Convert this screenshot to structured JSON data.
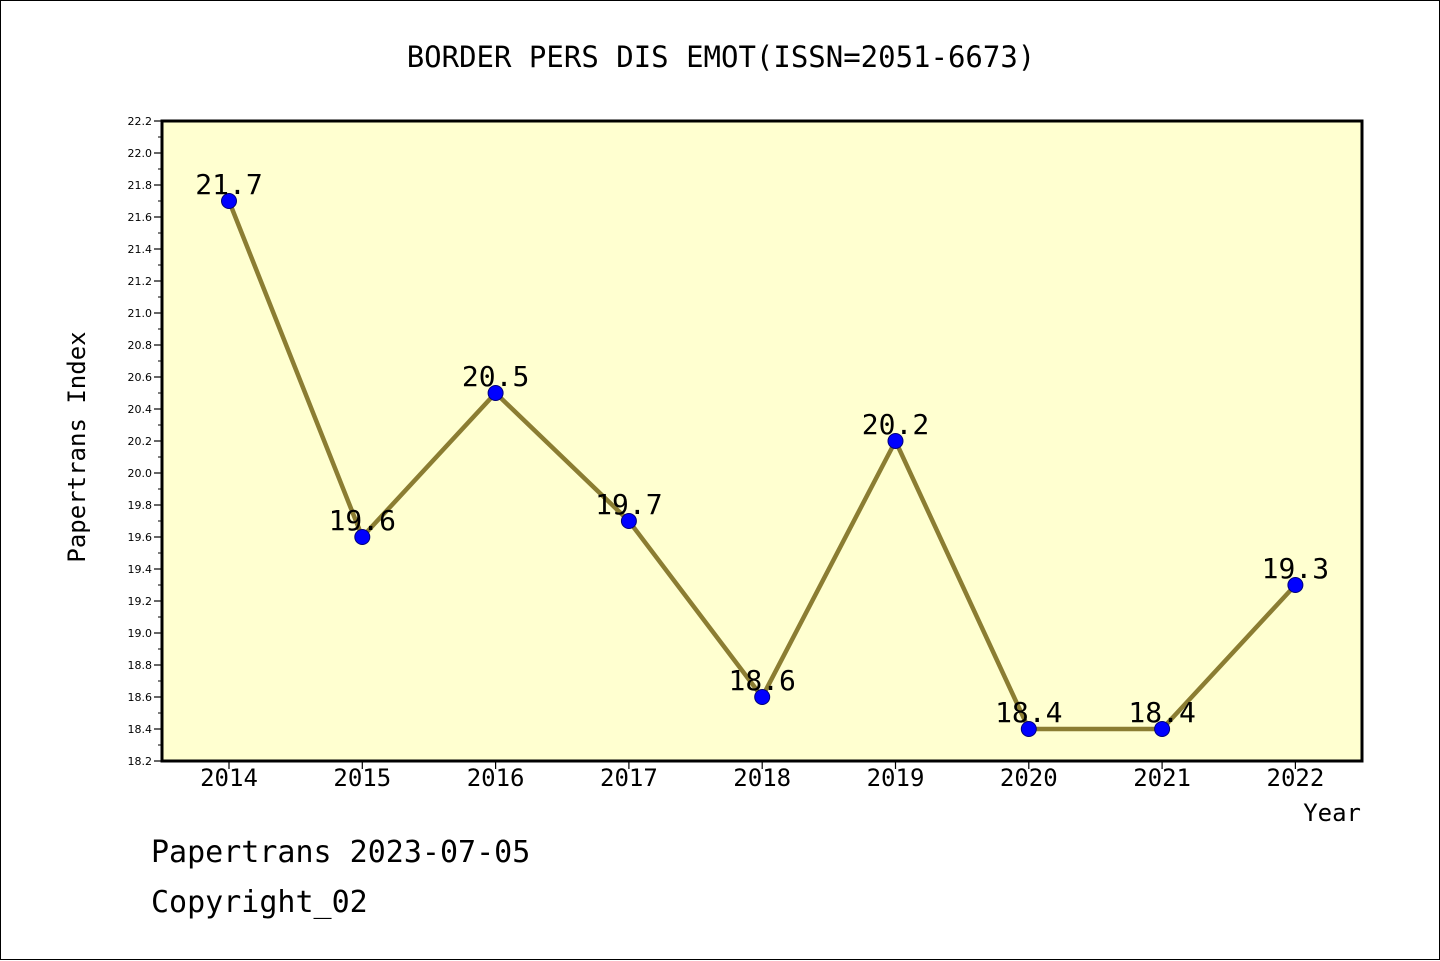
{
  "footer": {
    "stamp": "Papertrans 2023-07-05",
    "copyright": "Copyright_02"
  },
  "chart_data": {
    "type": "line",
    "title": "BORDER PERS DIS EMOT(ISSN=2051-6673)",
    "xlabel": "Year",
    "ylabel": "Papertrans Index",
    "categories": [
      "2014",
      "2015",
      "2016",
      "2017",
      "2018",
      "2019",
      "2020",
      "2021",
      "2022"
    ],
    "values": [
      21.7,
      19.6,
      20.5,
      19.7,
      18.6,
      20.2,
      18.4,
      18.4,
      19.3
    ],
    "data_labels": [
      "21.7",
      "19.6",
      "20.5",
      "19.7",
      "18.6",
      "20.2",
      "18.4",
      "18.4",
      "19.3"
    ],
    "ylim": [
      18.2,
      22.2
    ],
    "yticks": [
      "18.2",
      "18.4",
      "18.6",
      "18.8",
      "19.0",
      "19.2",
      "19.4",
      "19.6",
      "19.8",
      "20.0",
      "20.2",
      "20.4",
      "20.6",
      "20.8",
      "21.0",
      "21.2",
      "21.4",
      "21.6",
      "21.8",
      "22.0",
      "22.2"
    ],
    "grid": false,
    "colors": {
      "plot_background": "#ffffd0",
      "line": "#8b7d32",
      "marker": "#0000ff"
    }
  }
}
